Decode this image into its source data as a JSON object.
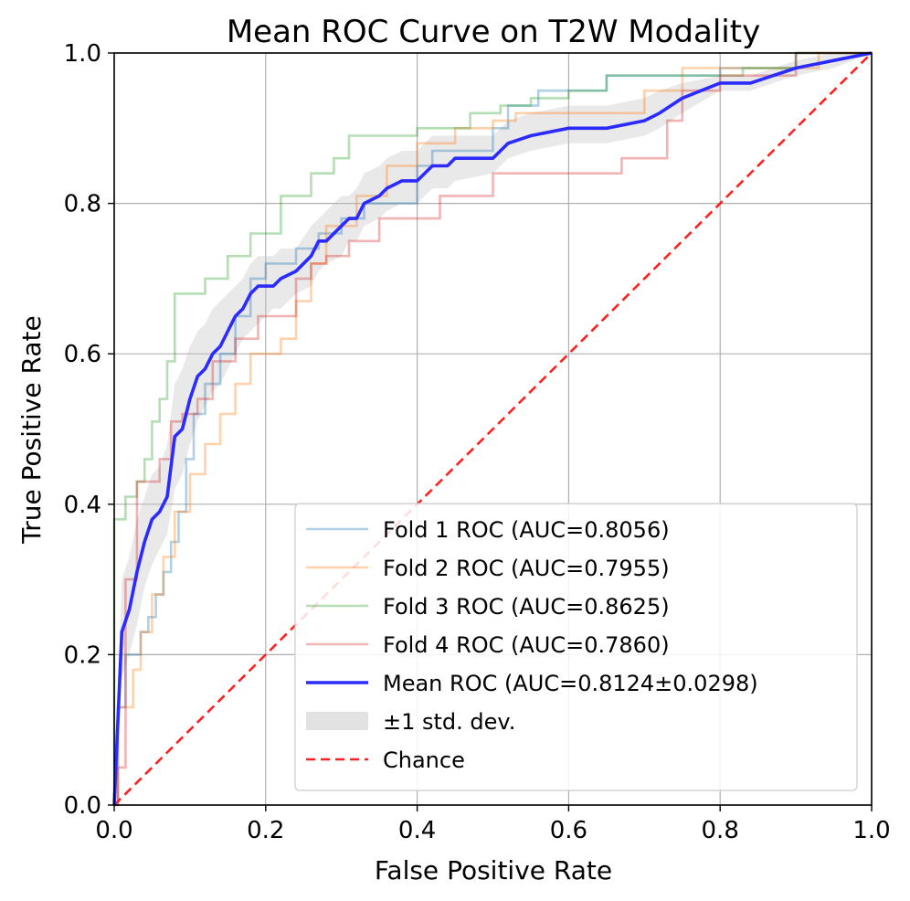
{
  "chart_data": {
    "type": "line",
    "title": "Mean ROC Curve on T2W Modality",
    "xlabel": "False Positive Rate",
    "ylabel": "True Positive Rate",
    "xlim": [
      0.0,
      1.0
    ],
    "ylim": [
      0.0,
      1.0
    ],
    "xticks": [
      "0.0",
      "0.2",
      "0.4",
      "0.6",
      "0.8",
      "1.0"
    ],
    "yticks": [
      "0.0",
      "0.2",
      "0.4",
      "0.6",
      "0.8",
      "1.0"
    ],
    "grid": true,
    "legend_position": "lower-right",
    "series": [
      {
        "name": "Fold 1 ROC (AUC=0.8056)",
        "color": "#1f77b4",
        "opacity": 0.35,
        "style": "step",
        "x": [
          0.0,
          0.005,
          0.005,
          0.015,
          0.015,
          0.035,
          0.035,
          0.045,
          0.045,
          0.055,
          0.055,
          0.065,
          0.065,
          0.075,
          0.075,
          0.085,
          0.085,
          0.095,
          0.095,
          0.105,
          0.105,
          0.12,
          0.12,
          0.14,
          0.14,
          0.16,
          0.16,
          0.18,
          0.18,
          0.2,
          0.2,
          0.24,
          0.24,
          0.27,
          0.27,
          0.3,
          0.3,
          0.33,
          0.33,
          0.4,
          0.4,
          0.42,
          0.42,
          0.5,
          0.5,
          0.52,
          0.52,
          0.56,
          0.56,
          0.65,
          0.65,
          0.7,
          0.7,
          0.8,
          0.8,
          0.9,
          0.9,
          1.0
        ],
        "y": [
          0.0,
          0.0,
          0.13,
          0.13,
          0.2,
          0.2,
          0.23,
          0.23,
          0.25,
          0.25,
          0.28,
          0.28,
          0.31,
          0.31,
          0.35,
          0.35,
          0.39,
          0.39,
          0.46,
          0.46,
          0.52,
          0.52,
          0.56,
          0.56,
          0.6,
          0.6,
          0.65,
          0.65,
          0.7,
          0.7,
          0.72,
          0.72,
          0.74,
          0.74,
          0.76,
          0.76,
          0.78,
          0.78,
          0.8,
          0.8,
          0.85,
          0.85,
          0.87,
          0.87,
          0.9,
          0.9,
          0.93,
          0.93,
          0.95,
          0.95,
          0.97,
          0.97,
          0.97,
          0.97,
          0.98,
          0.98,
          1.0,
          1.0
        ]
      },
      {
        "name": "Fold 2 ROC (AUC=0.7955)",
        "color": "#ff7f0e",
        "opacity": 0.35,
        "style": "step",
        "x": [
          0.0,
          0.005,
          0.005,
          0.025,
          0.025,
          0.035,
          0.035,
          0.05,
          0.05,
          0.065,
          0.065,
          0.08,
          0.08,
          0.1,
          0.1,
          0.12,
          0.12,
          0.14,
          0.14,
          0.16,
          0.16,
          0.18,
          0.18,
          0.22,
          0.22,
          0.24,
          0.24,
          0.26,
          0.26,
          0.28,
          0.28,
          0.32,
          0.32,
          0.36,
          0.36,
          0.4,
          0.4,
          0.45,
          0.45,
          0.5,
          0.5,
          0.53,
          0.53,
          0.6,
          0.6,
          0.7,
          0.7,
          0.75,
          0.75,
          0.93,
          0.93,
          0.98,
          0.98,
          1.0
        ],
        "y": [
          0.0,
          0.0,
          0.13,
          0.13,
          0.18,
          0.18,
          0.23,
          0.23,
          0.28,
          0.28,
          0.33,
          0.33,
          0.39,
          0.39,
          0.44,
          0.44,
          0.48,
          0.48,
          0.52,
          0.52,
          0.56,
          0.56,
          0.6,
          0.6,
          0.62,
          0.62,
          0.67,
          0.67,
          0.72,
          0.72,
          0.77,
          0.77,
          0.81,
          0.81,
          0.85,
          0.85,
          0.88,
          0.88,
          0.9,
          0.9,
          0.91,
          0.91,
          0.92,
          0.92,
          0.92,
          0.92,
          0.95,
          0.95,
          0.98,
          0.98,
          1.0,
          1.0,
          1.0,
          1.0
        ]
      },
      {
        "name": "Fold 3 ROC (AUC=0.8625)",
        "color": "#2ca02c",
        "opacity": 0.35,
        "style": "step",
        "x": [
          0.0,
          0.0,
          0.015,
          0.015,
          0.03,
          0.03,
          0.04,
          0.04,
          0.05,
          0.05,
          0.06,
          0.06,
          0.07,
          0.07,
          0.08,
          0.08,
          0.1,
          0.1,
          0.12,
          0.12,
          0.15,
          0.15,
          0.18,
          0.18,
          0.22,
          0.22,
          0.26,
          0.26,
          0.29,
          0.29,
          0.31,
          0.31,
          0.4,
          0.4,
          0.47,
          0.47,
          0.51,
          0.51,
          0.55,
          0.55,
          0.6,
          0.6,
          0.65,
          0.65,
          0.75,
          0.75,
          0.83,
          0.83,
          0.9,
          0.9,
          0.92,
          0.92,
          1.0
        ],
        "y": [
          0.0,
          0.38,
          0.38,
          0.41,
          0.41,
          0.43,
          0.43,
          0.46,
          0.46,
          0.51,
          0.51,
          0.54,
          0.54,
          0.59,
          0.59,
          0.68,
          0.68,
          0.68,
          0.68,
          0.7,
          0.7,
          0.73,
          0.73,
          0.76,
          0.76,
          0.81,
          0.81,
          0.84,
          0.84,
          0.86,
          0.86,
          0.89,
          0.89,
          0.9,
          0.9,
          0.92,
          0.92,
          0.93,
          0.93,
          0.94,
          0.94,
          0.95,
          0.95,
          0.97,
          0.97,
          0.97,
          0.97,
          0.98,
          0.98,
          1.0,
          1.0,
          1.0,
          1.0
        ]
      },
      {
        "name": "Fold 4 ROC (AUC=0.7860)",
        "color": "#d62728",
        "opacity": 0.35,
        "style": "step",
        "x": [
          0.0,
          0.005,
          0.005,
          0.015,
          0.015,
          0.03,
          0.03,
          0.06,
          0.06,
          0.075,
          0.075,
          0.09,
          0.09,
          0.11,
          0.11,
          0.13,
          0.13,
          0.16,
          0.16,
          0.19,
          0.19,
          0.24,
          0.24,
          0.26,
          0.26,
          0.28,
          0.28,
          0.31,
          0.31,
          0.35,
          0.35,
          0.43,
          0.43,
          0.5,
          0.5,
          0.67,
          0.67,
          0.73,
          0.73,
          0.75,
          0.75,
          0.8,
          0.8,
          0.9,
          0.9,
          1.0
        ],
        "y": [
          0.0,
          0.0,
          0.05,
          0.05,
          0.3,
          0.3,
          0.43,
          0.43,
          0.46,
          0.46,
          0.51,
          0.51,
          0.52,
          0.52,
          0.54,
          0.54,
          0.59,
          0.59,
          0.62,
          0.62,
          0.65,
          0.65,
          0.7,
          0.7,
          0.72,
          0.72,
          0.73,
          0.73,
          0.75,
          0.75,
          0.78,
          0.78,
          0.81,
          0.81,
          0.84,
          0.84,
          0.86,
          0.86,
          0.91,
          0.91,
          0.95,
          0.95,
          0.97,
          0.97,
          1.0,
          1.0
        ]
      },
      {
        "name": "Mean ROC (AUC=0.8124±0.0298)",
        "color": "#2b2bff",
        "opacity": 1.0,
        "style": "mean",
        "x": [
          0.0,
          0.01,
          0.02,
          0.03,
          0.04,
          0.05,
          0.06,
          0.07,
          0.08,
          0.09,
          0.1,
          0.11,
          0.12,
          0.13,
          0.14,
          0.15,
          0.16,
          0.17,
          0.18,
          0.19,
          0.2,
          0.21,
          0.22,
          0.24,
          0.26,
          0.27,
          0.28,
          0.3,
          0.31,
          0.32,
          0.33,
          0.35,
          0.36,
          0.38,
          0.4,
          0.42,
          0.44,
          0.45,
          0.5,
          0.51,
          0.52,
          0.55,
          0.6,
          0.65,
          0.7,
          0.72,
          0.75,
          0.8,
          0.84,
          0.9,
          0.95,
          1.0
        ],
        "y": [
          0.0,
          0.23,
          0.26,
          0.31,
          0.35,
          0.38,
          0.39,
          0.41,
          0.49,
          0.5,
          0.54,
          0.57,
          0.58,
          0.6,
          0.61,
          0.63,
          0.65,
          0.66,
          0.68,
          0.69,
          0.69,
          0.69,
          0.7,
          0.71,
          0.73,
          0.75,
          0.75,
          0.77,
          0.78,
          0.78,
          0.8,
          0.81,
          0.82,
          0.83,
          0.83,
          0.85,
          0.85,
          0.86,
          0.86,
          0.87,
          0.88,
          0.89,
          0.9,
          0.9,
          0.91,
          0.92,
          0.94,
          0.96,
          0.96,
          0.98,
          0.99,
          1.0
        ],
        "std_upper": [
          0.0,
          0.3,
          0.33,
          0.38,
          0.41,
          0.44,
          0.45,
          0.48,
          0.56,
          0.58,
          0.61,
          0.63,
          0.64,
          0.66,
          0.67,
          0.68,
          0.69,
          0.7,
          0.72,
          0.73,
          0.73,
          0.73,
          0.74,
          0.74,
          0.77,
          0.78,
          0.79,
          0.81,
          0.81,
          0.82,
          0.84,
          0.85,
          0.86,
          0.87,
          0.87,
          0.89,
          0.89,
          0.89,
          0.89,
          0.9,
          0.91,
          0.92,
          0.93,
          0.93,
          0.94,
          0.95,
          0.96,
          0.97,
          0.97,
          0.99,
          1.0,
          1.0
        ],
        "std_lower": [
          0.0,
          0.17,
          0.2,
          0.24,
          0.29,
          0.32,
          0.34,
          0.36,
          0.42,
          0.44,
          0.48,
          0.51,
          0.53,
          0.55,
          0.56,
          0.58,
          0.6,
          0.62,
          0.63,
          0.64,
          0.65,
          0.66,
          0.66,
          0.68,
          0.69,
          0.71,
          0.72,
          0.73,
          0.75,
          0.75,
          0.77,
          0.78,
          0.79,
          0.8,
          0.8,
          0.82,
          0.82,
          0.83,
          0.84,
          0.85,
          0.86,
          0.87,
          0.88,
          0.88,
          0.89,
          0.9,
          0.92,
          0.95,
          0.95,
          0.97,
          0.98,
          1.0
        ]
      },
      {
        "name": "±1 std. dev.",
        "color": "#bfbfbf",
        "style": "band"
      },
      {
        "name": "Chance",
        "color": "#ff2020",
        "style": "dashed",
        "x": [
          0.0,
          1.0
        ],
        "y": [
          0.0,
          1.0
        ]
      }
    ]
  }
}
